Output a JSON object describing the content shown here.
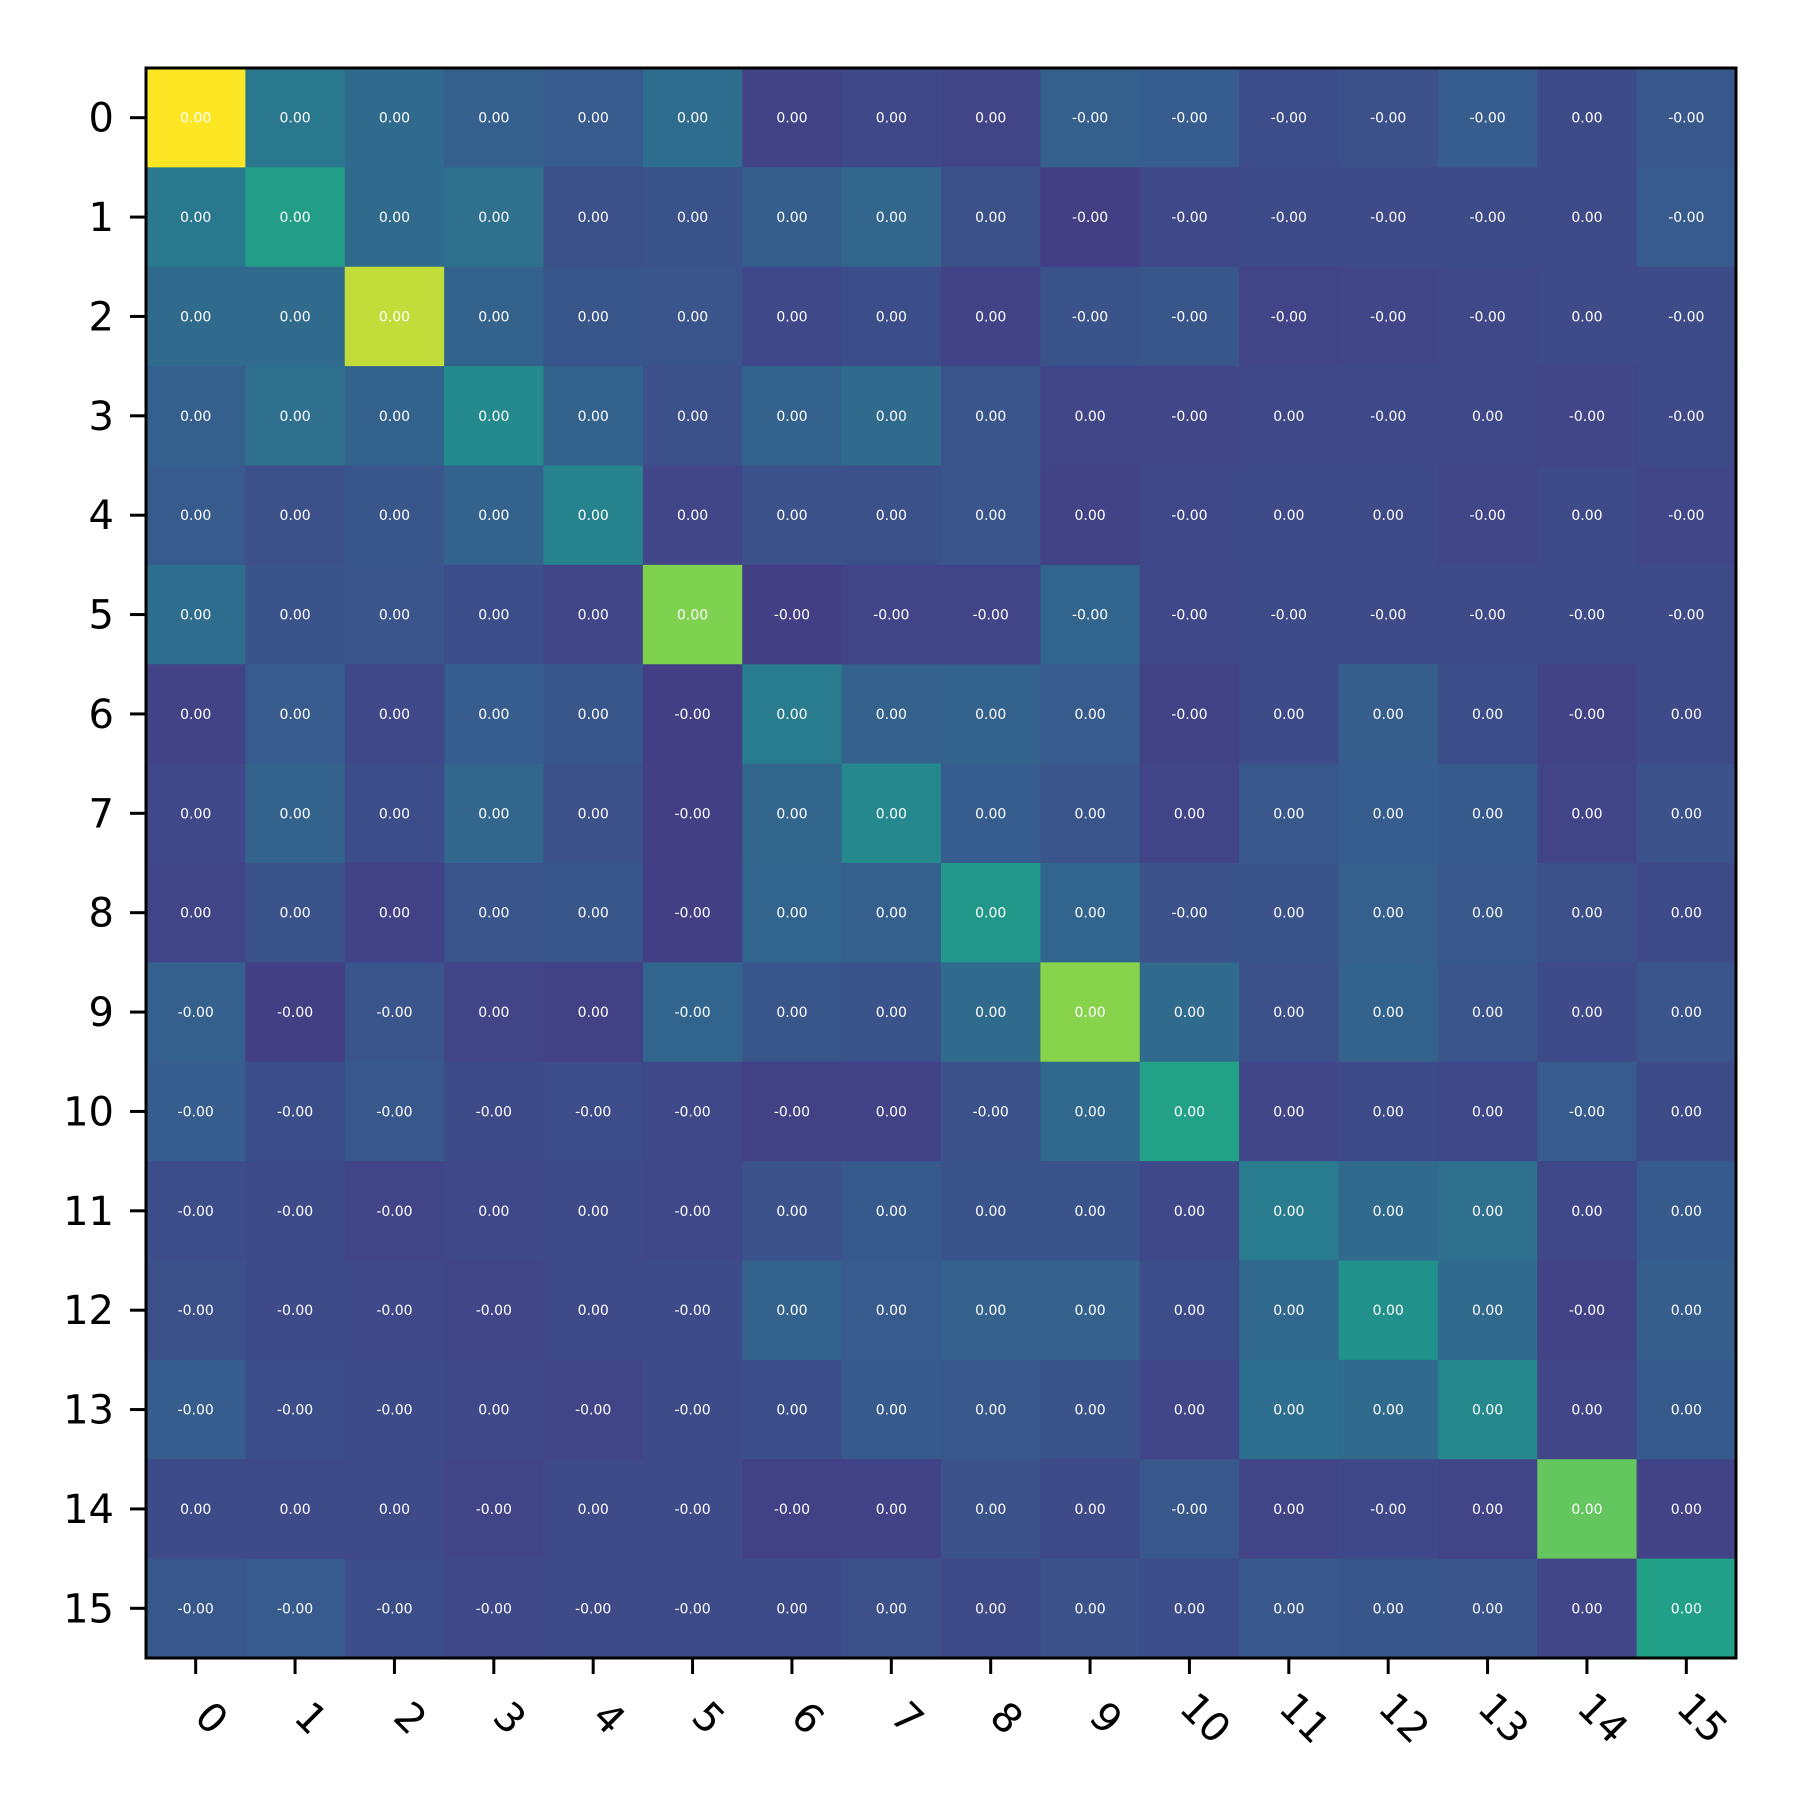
{
  "chart_data": {
    "type": "heatmap",
    "title": "",
    "xlabel": "",
    "ylabel": "",
    "x_categories": [
      "0",
      "1",
      "2",
      "3",
      "4",
      "5",
      "6",
      "7",
      "8",
      "9",
      "10",
      "11",
      "12",
      "13",
      "14",
      "15"
    ],
    "y_categories": [
      "0",
      "1",
      "2",
      "3",
      "4",
      "5",
      "6",
      "7",
      "8",
      "9",
      "10",
      "11",
      "12",
      "13",
      "14",
      "15"
    ],
    "x_tick_rotation_deg": 45,
    "colormap": "viridis",
    "colorbar": false,
    "grid": false,
    "value_range": [
      -0.3,
      1.0
    ],
    "values": [
      [
        1.0,
        0.35,
        0.27,
        0.2,
        0.17,
        0.28,
        0.02,
        0.05,
        0.03,
        0.2,
        0.18,
        0.08,
        0.1,
        0.18,
        0.07,
        0.15
      ],
      [
        0.35,
        0.61,
        0.27,
        0.3,
        0.1,
        0.12,
        0.19,
        0.24,
        0.1,
        0.0,
        0.05,
        0.07,
        0.06,
        0.07,
        0.06,
        0.17
      ],
      [
        0.27,
        0.27,
        0.93,
        0.22,
        0.14,
        0.13,
        0.05,
        0.09,
        0.02,
        0.12,
        0.14,
        0.03,
        0.04,
        0.05,
        0.06,
        0.07
      ],
      [
        0.2,
        0.3,
        0.22,
        0.47,
        0.22,
        0.1,
        0.22,
        0.26,
        0.13,
        0.04,
        0.04,
        0.05,
        0.05,
        0.05,
        0.04,
        0.06
      ],
      [
        0.17,
        0.1,
        0.14,
        0.22,
        0.42,
        0.04,
        0.11,
        0.1,
        0.13,
        0.02,
        0.05,
        0.06,
        0.06,
        0.04,
        0.06,
        0.04
      ],
      [
        0.28,
        0.12,
        0.13,
        0.09,
        0.04,
        0.85,
        0.0,
        0.03,
        0.03,
        0.23,
        0.05,
        0.07,
        0.06,
        0.06,
        0.07,
        0.06
      ],
      [
        0.02,
        0.17,
        0.05,
        0.18,
        0.14,
        0.0,
        0.38,
        0.21,
        0.22,
        0.17,
        0.02,
        0.07,
        0.19,
        0.09,
        0.02,
        0.06
      ],
      [
        0.05,
        0.22,
        0.08,
        0.24,
        0.1,
        0.0,
        0.24,
        0.46,
        0.18,
        0.13,
        0.03,
        0.15,
        0.18,
        0.16,
        0.03,
        0.11
      ],
      [
        0.03,
        0.12,
        0.02,
        0.13,
        0.14,
        0.0,
        0.23,
        0.2,
        0.56,
        0.23,
        0.11,
        0.12,
        0.2,
        0.15,
        0.1,
        0.06
      ],
      [
        0.2,
        0.0,
        0.13,
        0.03,
        0.01,
        0.23,
        0.14,
        0.12,
        0.27,
        0.86,
        0.26,
        0.1,
        0.22,
        0.13,
        0.06,
        0.13
      ],
      [
        0.18,
        0.09,
        0.15,
        0.06,
        0.08,
        0.05,
        0.01,
        0.02,
        0.11,
        0.25,
        0.63,
        0.04,
        0.07,
        0.05,
        0.17,
        0.07
      ],
      [
        0.08,
        0.07,
        0.03,
        0.05,
        0.06,
        0.05,
        0.11,
        0.16,
        0.12,
        0.12,
        0.05,
        0.38,
        0.26,
        0.3,
        0.05,
        0.16
      ],
      [
        0.1,
        0.06,
        0.05,
        0.04,
        0.06,
        0.07,
        0.22,
        0.17,
        0.21,
        0.21,
        0.08,
        0.25,
        0.52,
        0.26,
        0.02,
        0.19
      ],
      [
        0.18,
        0.09,
        0.07,
        0.05,
        0.03,
        0.07,
        0.09,
        0.16,
        0.15,
        0.12,
        0.04,
        0.29,
        0.27,
        0.46,
        0.04,
        0.16
      ],
      [
        0.07,
        0.06,
        0.06,
        0.03,
        0.06,
        0.07,
        0.01,
        0.02,
        0.11,
        0.06,
        0.15,
        0.03,
        0.05,
        0.03,
        0.8,
        0.02
      ],
      [
        0.15,
        0.17,
        0.09,
        0.05,
        0.06,
        0.07,
        0.07,
        0.1,
        0.06,
        0.11,
        0.08,
        0.15,
        0.14,
        0.13,
        0.04,
        0.62
      ]
    ],
    "cell_labels": [
      [
        "0.00",
        "0.00",
        "0.00",
        "0.00",
        "0.00",
        "0.00",
        "0.00",
        "0.00",
        "0.00",
        "-0.00",
        "-0.00",
        "-0.00",
        "-0.00",
        "-0.00",
        "0.00",
        "-0.00"
      ],
      [
        "0.00",
        "0.00",
        "0.00",
        "0.00",
        "0.00",
        "0.00",
        "0.00",
        "0.00",
        "0.00",
        "-0.00",
        "-0.00",
        "-0.00",
        "-0.00",
        "-0.00",
        "0.00",
        "-0.00"
      ],
      [
        "0.00",
        "0.00",
        "0.00",
        "0.00",
        "0.00",
        "0.00",
        "0.00",
        "0.00",
        "0.00",
        "-0.00",
        "-0.00",
        "-0.00",
        "-0.00",
        "-0.00",
        "0.00",
        "-0.00"
      ],
      [
        "0.00",
        "0.00",
        "0.00",
        "0.00",
        "0.00",
        "0.00",
        "0.00",
        "0.00",
        "0.00",
        "0.00",
        "-0.00",
        "0.00",
        "-0.00",
        "0.00",
        "-0.00",
        "-0.00"
      ],
      [
        "0.00",
        "0.00",
        "0.00",
        "0.00",
        "0.00",
        "0.00",
        "0.00",
        "0.00",
        "0.00",
        "0.00",
        "-0.00",
        "0.00",
        "0.00",
        "-0.00",
        "0.00",
        "-0.00"
      ],
      [
        "0.00",
        "0.00",
        "0.00",
        "0.00",
        "0.00",
        "0.00",
        "-0.00",
        "-0.00",
        "-0.00",
        "-0.00",
        "-0.00",
        "-0.00",
        "-0.00",
        "-0.00",
        "-0.00",
        "-0.00"
      ],
      [
        "0.00",
        "0.00",
        "0.00",
        "0.00",
        "0.00",
        "-0.00",
        "0.00",
        "0.00",
        "0.00",
        "0.00",
        "-0.00",
        "0.00",
        "0.00",
        "0.00",
        "-0.00",
        "0.00"
      ],
      [
        "0.00",
        "0.00",
        "0.00",
        "0.00",
        "0.00",
        "-0.00",
        "0.00",
        "0.00",
        "0.00",
        "0.00",
        "0.00",
        "0.00",
        "0.00",
        "0.00",
        "0.00",
        "0.00"
      ],
      [
        "0.00",
        "0.00",
        "0.00",
        "0.00",
        "0.00",
        "-0.00",
        "0.00",
        "0.00",
        "0.00",
        "0.00",
        "-0.00",
        "0.00",
        "0.00",
        "0.00",
        "0.00",
        "0.00"
      ],
      [
        "-0.00",
        "-0.00",
        "-0.00",
        "0.00",
        "0.00",
        "-0.00",
        "0.00",
        "0.00",
        "0.00",
        "0.00",
        "0.00",
        "0.00",
        "0.00",
        "0.00",
        "0.00",
        "0.00"
      ],
      [
        "-0.00",
        "-0.00",
        "-0.00",
        "-0.00",
        "-0.00",
        "-0.00",
        "-0.00",
        "0.00",
        "-0.00",
        "0.00",
        "0.00",
        "0.00",
        "0.00",
        "0.00",
        "-0.00",
        "0.00"
      ],
      [
        "-0.00",
        "-0.00",
        "-0.00",
        "0.00",
        "0.00",
        "-0.00",
        "0.00",
        "0.00",
        "0.00",
        "0.00",
        "0.00",
        "0.00",
        "0.00",
        "0.00",
        "0.00",
        "0.00"
      ],
      [
        "-0.00",
        "-0.00",
        "-0.00",
        "-0.00",
        "0.00",
        "-0.00",
        "0.00",
        "0.00",
        "0.00",
        "0.00",
        "0.00",
        "0.00",
        "0.00",
        "0.00",
        "-0.00",
        "0.00"
      ],
      [
        "-0.00",
        "-0.00",
        "-0.00",
        "0.00",
        "-0.00",
        "-0.00",
        "0.00",
        "0.00",
        "0.00",
        "0.00",
        "0.00",
        "0.00",
        "0.00",
        "0.00",
        "0.00",
        "0.00"
      ],
      [
        "0.00",
        "0.00",
        "0.00",
        "-0.00",
        "0.00",
        "-0.00",
        "-0.00",
        "0.00",
        "0.00",
        "0.00",
        "-0.00",
        "0.00",
        "-0.00",
        "0.00",
        "0.00",
        "0.00"
      ],
      [
        "-0.00",
        "-0.00",
        "-0.00",
        "-0.00",
        "-0.00",
        "-0.00",
        "0.00",
        "0.00",
        "0.00",
        "0.00",
        "0.00",
        "0.00",
        "0.00",
        "0.00",
        "0.00",
        "0.00"
      ]
    ]
  }
}
